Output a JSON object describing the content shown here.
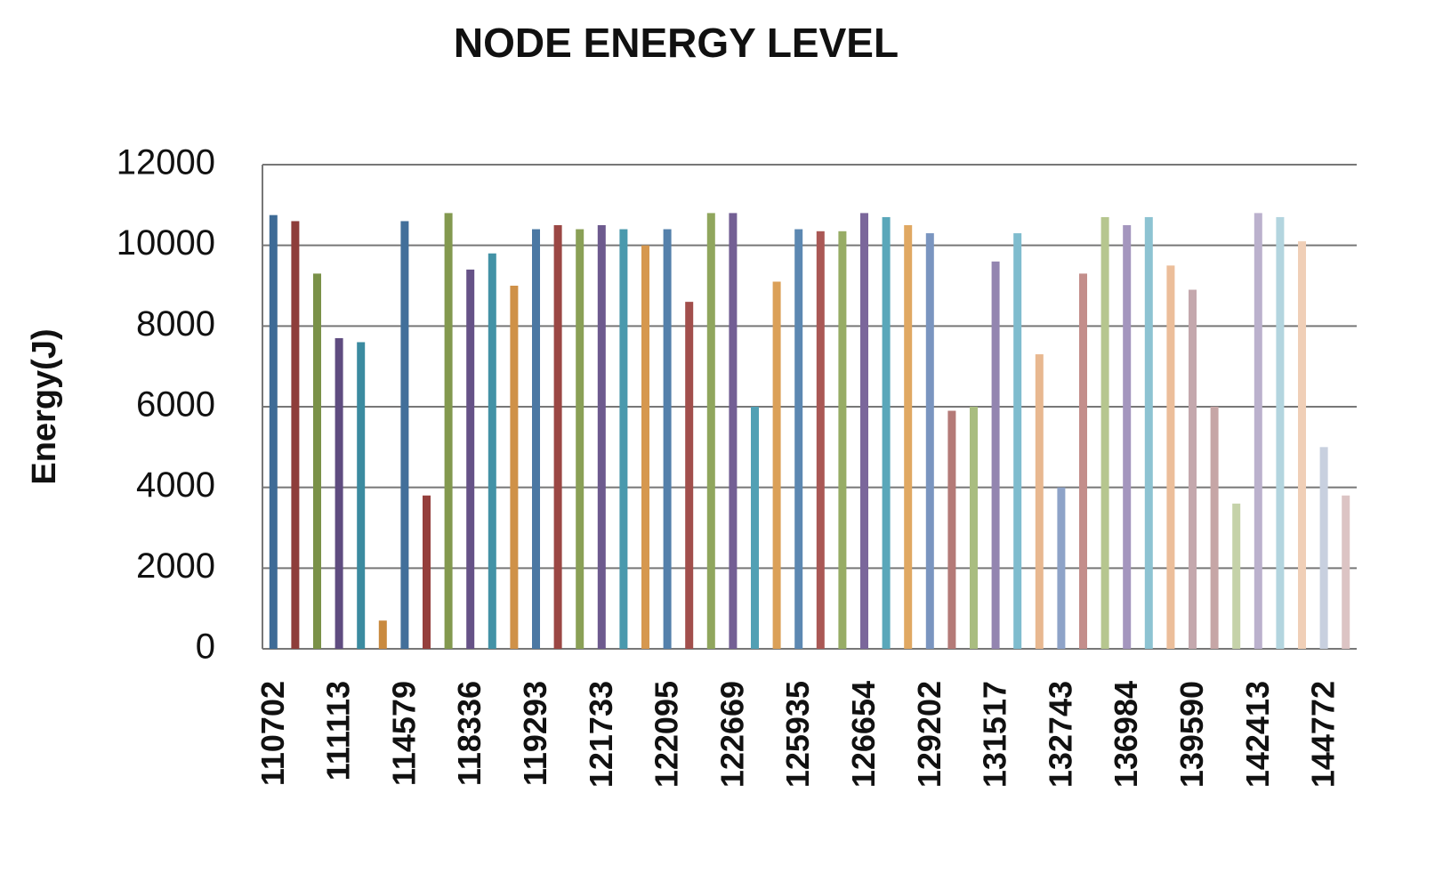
{
  "chart_data": {
    "type": "bar",
    "title": "NODE ENERGY LEVEL",
    "y_label": "Energy(J)",
    "categories": [
      "110702",
      null,
      null,
      "111113",
      null,
      null,
      "114579",
      null,
      null,
      "118336",
      null,
      null,
      "119293",
      null,
      null,
      "121733",
      null,
      null,
      "122095",
      null,
      null,
      "122669",
      null,
      null,
      "125935",
      null,
      null,
      "126654",
      null,
      null,
      "129202",
      null,
      null,
      "131517",
      null,
      null,
      "132743",
      null,
      null,
      "136984",
      null,
      null,
      "139590",
      null,
      null,
      "142413",
      null,
      null,
      "144772",
      null
    ],
    "values": [
      10750,
      10600,
      9300,
      7700,
      7600,
      700,
      10600,
      3800,
      10800,
      9400,
      9800,
      9000,
      10400,
      10500,
      10400,
      10500,
      10400,
      10000,
      10400,
      8600,
      10800,
      10800,
      6000,
      9100,
      10400,
      10350,
      10350,
      10800,
      10700,
      10500,
      10300,
      5900,
      6000,
      9600,
      10300,
      7300,
      4000,
      9300,
      10700,
      10500,
      10700,
      9500,
      8900,
      6000,
      3600,
      10800,
      10700,
      10100,
      5000,
      3800
    ],
    "colors": [
      "#3e6b96",
      "#8e3d3a",
      "#7a9148",
      "#5f4c80",
      "#3b8ba0",
      "#c98a3f",
      "#426f9a",
      "#953f3c",
      "#83994f",
      "#665287",
      "#4392a6",
      "#cf9148",
      "#4b78a3",
      "#9b4744",
      "#8aa056",
      "#6d5a8e",
      "#4a99ad",
      "#d6984f",
      "#5480ab",
      "#a24f4c",
      "#90a65d",
      "#735f94",
      "#52a0b4",
      "#dba058",
      "#5c88b2",
      "#aa5855",
      "#97ac65",
      "#7b679b",
      "#5aa7ba",
      "#e0a862",
      "#7a95c0",
      "#b47a77",
      "#a9bd80",
      "#9385b0",
      "#7fbcce",
      "#e8b890",
      "#8ea3c8",
      "#c38e8b",
      "#b6c68f",
      "#a496be",
      "#8dc3d2",
      "#ecbe9a",
      "#c4a8ad",
      "#c6a6a6",
      "#c5d2a9",
      "#bbb1cd",
      "#b3d5df",
      "#f0cfb7",
      "#c8d0df",
      "#dcc4c4"
    ],
    "ylim": [
      0,
      12000
    ],
    "yticks": [
      0,
      2000,
      4000,
      6000,
      8000,
      10000,
      12000
    ],
    "grid": true
  }
}
